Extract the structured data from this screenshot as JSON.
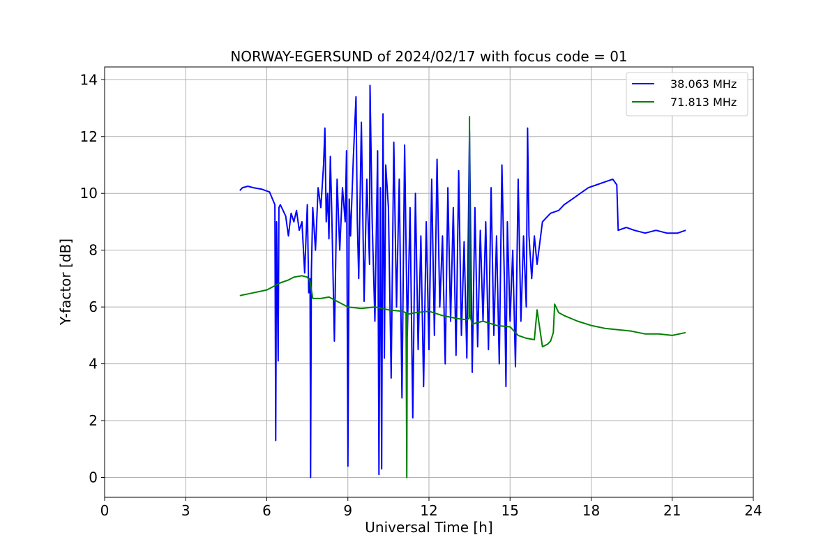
{
  "chart_data": {
    "type": "line",
    "title": "NORWAY-EGERSUND of 2024/02/17 with focus code = 01",
    "xlabel": "Universal Time [h]",
    "ylabel": "Y-factor [dB]",
    "xlim": [
      0,
      24
    ],
    "ylim": [
      -0.7,
      14.45
    ],
    "xticks": [
      0,
      3,
      6,
      9,
      12,
      15,
      18,
      21,
      24
    ],
    "yticks": [
      0,
      2,
      4,
      6,
      8,
      10,
      12,
      14
    ],
    "grid": true,
    "legend_position": "top-right",
    "series": [
      {
        "name": "38.063 MHz",
        "color": "#0000ff",
        "x": [
          5.0,
          5.1,
          5.3,
          5.5,
          5.8,
          6.1,
          6.3,
          6.33,
          6.36,
          6.42,
          6.45,
          6.5,
          6.6,
          6.7,
          6.8,
          6.9,
          7.0,
          7.1,
          7.2,
          7.3,
          7.4,
          7.5,
          7.55,
          7.6,
          7.62,
          7.65,
          7.7,
          7.8,
          7.9,
          8.0,
          8.1,
          8.15,
          8.2,
          8.25,
          8.3,
          8.35,
          8.4,
          8.5,
          8.6,
          8.7,
          8.8,
          8.9,
          8.95,
          9.0,
          9.05,
          9.1,
          9.2,
          9.3,
          9.35,
          9.4,
          9.5,
          9.6,
          9.7,
          9.8,
          9.82,
          9.9,
          10.0,
          10.1,
          10.15,
          10.2,
          10.25,
          10.3,
          10.35,
          10.4,
          10.5,
          10.6,
          10.7,
          10.8,
          10.9,
          11.0,
          11.1,
          11.2,
          11.3,
          11.4,
          11.5,
          11.6,
          11.7,
          11.8,
          11.9,
          12.0,
          12.1,
          12.2,
          12.3,
          12.4,
          12.5,
          12.6,
          12.7,
          12.8,
          12.9,
          13.0,
          13.1,
          13.2,
          13.3,
          13.4,
          13.5,
          13.6,
          13.7,
          13.8,
          13.9,
          14.0,
          14.1,
          14.2,
          14.3,
          14.4,
          14.5,
          14.6,
          14.7,
          14.8,
          14.85,
          14.9,
          15.0,
          15.1,
          15.2,
          15.3,
          15.4,
          15.5,
          15.6,
          15.65,
          15.7,
          15.8,
          15.9,
          16.0,
          16.2,
          16.5,
          16.8,
          17.0,
          17.3,
          17.6,
          17.9,
          18.2,
          18.5,
          18.8,
          18.95,
          19.0,
          19.3,
          19.6,
          20.0,
          20.4,
          20.8,
          21.2,
          21.5
        ],
        "y": [
          10.1,
          10.2,
          10.25,
          10.2,
          10.15,
          10.05,
          9.6,
          1.3,
          9.0,
          4.1,
          9.5,
          9.6,
          9.4,
          9.2,
          8.5,
          9.3,
          9.0,
          9.4,
          8.7,
          9.0,
          7.2,
          9.6,
          6.5,
          7.0,
          0.0,
          7.2,
          9.5,
          8.0,
          10.2,
          9.5,
          11.0,
          12.3,
          9.0,
          10.0,
          8.4,
          11.3,
          9.5,
          4.8,
          10.5,
          8.0,
          10.2,
          9.0,
          11.5,
          0.4,
          9.8,
          8.5,
          11.2,
          13.4,
          9.0,
          7.0,
          12.5,
          6.2,
          10.5,
          7.5,
          13.8,
          9.0,
          5.5,
          11.5,
          0.1,
          10.2,
          0.3,
          12.8,
          4.2,
          11.0,
          9.5,
          3.5,
          11.8,
          6.0,
          10.5,
          2.8,
          11.7,
          5.0,
          9.5,
          2.1,
          10.0,
          4.5,
          8.5,
          3.2,
          9.0,
          4.5,
          10.5,
          5.0,
          11.2,
          6.0,
          8.5,
          4.0,
          10.2,
          5.5,
          9.5,
          4.3,
          10.8,
          5.0,
          8.3,
          4.2,
          12.2,
          3.7,
          9.5,
          4.6,
          8.7,
          5.5,
          9.0,
          4.5,
          10.2,
          5.0,
          8.5,
          4.0,
          11.0,
          6.5,
          3.2,
          9.0,
          5.5,
          8.0,
          3.9,
          10.5,
          5.5,
          8.5,
          6.0,
          12.3,
          8.5,
          7.0,
          8.5,
          7.5,
          9.0,
          9.3,
          9.4,
          9.6,
          9.8,
          10.0,
          10.2,
          10.3,
          10.4,
          10.5,
          10.3,
          8.7,
          8.8,
          8.7,
          8.6,
          8.7,
          8.6,
          8.6,
          8.7
        ]
      },
      {
        "name": "71.813 MHz",
        "color": "#008000",
        "x": [
          5.0,
          5.5,
          6.0,
          6.3,
          6.5,
          6.8,
          7.0,
          7.3,
          7.5,
          7.6,
          7.7,
          8.0,
          8.3,
          8.6,
          9.0,
          9.5,
          10.0,
          10.5,
          11.0,
          11.15,
          11.18,
          11.2,
          11.25,
          11.5,
          12.0,
          12.5,
          13.0,
          13.4,
          13.48,
          13.5,
          13.52,
          13.6,
          14.0,
          14.5,
          15.0,
          15.3,
          15.6,
          15.9,
          16.0,
          16.2,
          16.4,
          16.5,
          16.6,
          16.65,
          16.8,
          17.0,
          17.5,
          18.0,
          18.5,
          19.0,
          19.5,
          20.0,
          20.5,
          21.0,
          21.5
        ],
        "y": [
          6.4,
          6.5,
          6.6,
          6.75,
          6.85,
          6.95,
          7.05,
          7.1,
          7.05,
          6.9,
          6.3,
          6.3,
          6.35,
          6.2,
          6.0,
          5.95,
          6.0,
          5.9,
          5.85,
          5.8,
          0.0,
          5.8,
          5.75,
          5.8,
          5.85,
          5.7,
          5.6,
          5.55,
          5.6,
          12.7,
          5.7,
          5.4,
          5.5,
          5.35,
          5.3,
          5.0,
          4.9,
          4.85,
          5.9,
          4.6,
          4.7,
          4.8,
          5.1,
          6.1,
          5.8,
          5.7,
          5.5,
          5.35,
          5.25,
          5.2,
          5.15,
          5.05,
          5.05,
          5.0,
          5.1
        ]
      }
    ]
  }
}
